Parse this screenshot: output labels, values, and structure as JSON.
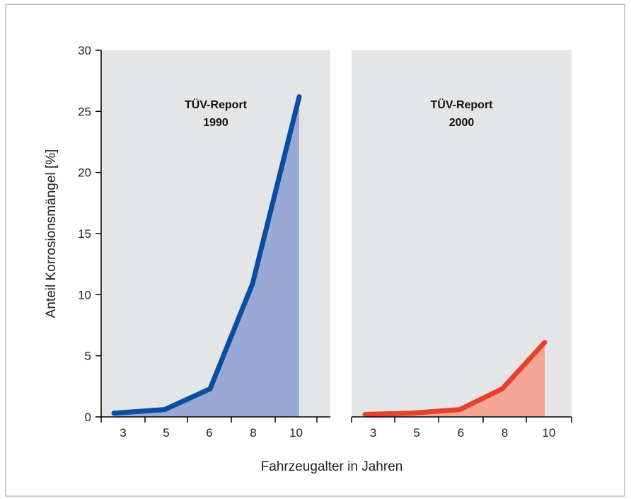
{
  "chart_data": {
    "type": "area",
    "ylabel": "Anteil Korrosionsmängel [%]",
    "xlabel": "Fahrzeugalter in Jahren",
    "categories": [
      "3",
      "5",
      "6",
      "8",
      "10"
    ],
    "ylim": [
      0,
      30
    ],
    "yticks": [
      "0",
      "5",
      "10",
      "15",
      "20",
      "25",
      "30"
    ],
    "grid": false,
    "panels": [
      {
        "title_line1": "TÜV-Report",
        "title_line2": "1990",
        "values": [
          0.3,
          0.6,
          2.3,
          10.9,
          26.2
        ],
        "line_color": "#0a4ea1",
        "fill_color": "#99a9d6"
      },
      {
        "title_line1": "TÜV-Report",
        "title_line2": "2000",
        "values": [
          0.2,
          0.3,
          0.6,
          2.3,
          6.1
        ],
        "line_color": "#e8402e",
        "fill_color": "#f5a596"
      }
    ],
    "panel_background": "#e4e5e6"
  }
}
